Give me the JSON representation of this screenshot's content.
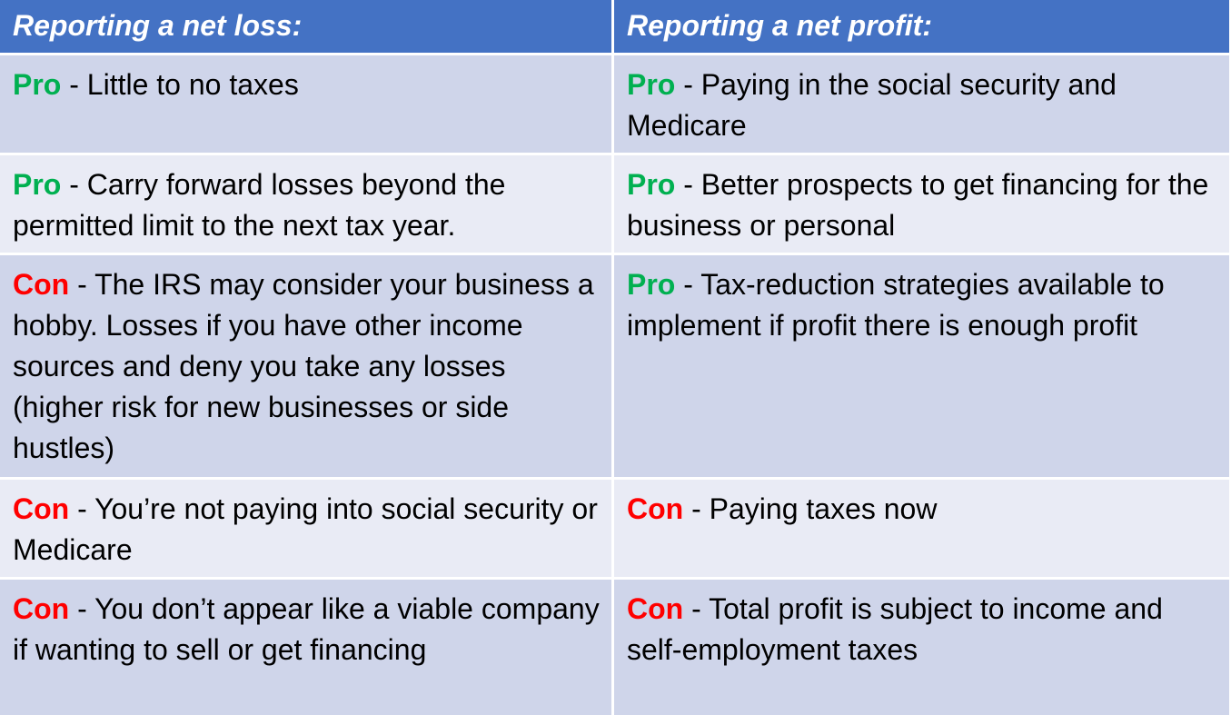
{
  "header": {
    "left": "Reporting a net loss:",
    "right": "Reporting a net profit:"
  },
  "rows": [
    {
      "left": {
        "tag": "Pro",
        "text": " - Little to no taxes"
      },
      "right": {
        "tag": "Pro",
        "text": " - Paying in the social security and Medicare"
      }
    },
    {
      "left": {
        "tag": "Pro",
        "text": " - Carry forward losses beyond the permitted limit to the next tax year."
      },
      "right": {
        "tag": "Pro",
        "text": " - Better prospects to get financing for the business or personal"
      }
    },
    {
      "left": {
        "tag": "Con",
        "text": " - The IRS may consider your business a hobby. Losses if you have other income sources and deny you take any losses (higher risk for new businesses or side hustles)"
      },
      "right": {
        "tag": "Pro",
        "text": " - Tax-reduction strategies available to implement if profit there is enough profit"
      }
    },
    {
      "left": {
        "tag": "Con",
        "text": " - You’re not paying into social security or Medicare"
      },
      "right": {
        "tag": "Con",
        "text": " - Paying taxes now"
      }
    },
    {
      "left": {
        "tag": "Con",
        "text": " - You don’t appear like a viable company if wanting to sell or get financing"
      },
      "right": {
        "tag": "Con",
        "text": " - Total profit is subject to income and self-employment taxes"
      }
    }
  ],
  "colors": {
    "header_bg": "#4472c4",
    "row_dark": "#cfd5ea",
    "row_light": "#e9ebf5",
    "pro": "#00b050",
    "con": "#ff0000"
  }
}
